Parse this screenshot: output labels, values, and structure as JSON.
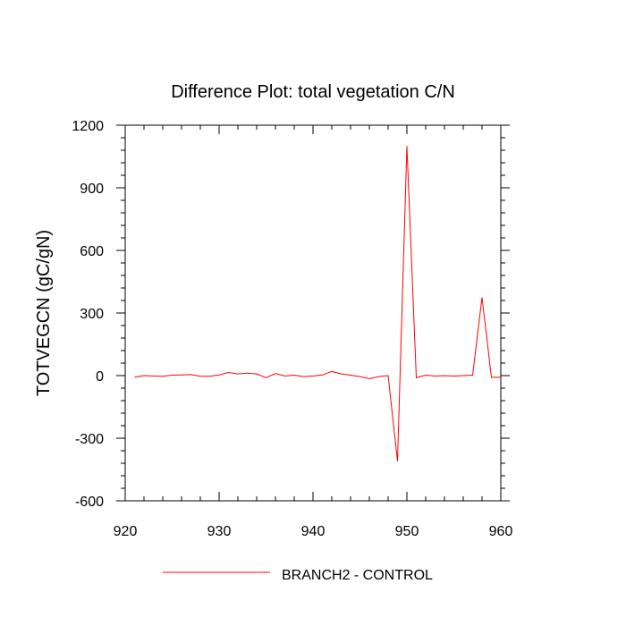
{
  "chart_data": {
    "type": "line",
    "title": "Difference Plot: total vegetation C/N",
    "xlabel": "",
    "ylabel": "TOTVEGCN  (gC/gN)",
    "xlim": [
      920,
      960
    ],
    "ylim": [
      -600,
      1200
    ],
    "x_ticks": [
      920,
      930,
      940,
      950,
      960
    ],
    "x_minor_step": 2,
    "y_ticks": [
      -600,
      -300,
      0,
      300,
      600,
      900,
      1200
    ],
    "y_minor_step": 60,
    "grid": false,
    "legend_position": "bottom-center",
    "series": [
      {
        "name": "BRANCH2 - CONTROL",
        "color": "#ff0000",
        "x": [
          921,
          922,
          923,
          924,
          925,
          926,
          927,
          928,
          929,
          930,
          931,
          932,
          933,
          934,
          935,
          936,
          937,
          938,
          939,
          940,
          941,
          942,
          943,
          944,
          945,
          946,
          947,
          948,
          949,
          950,
          951,
          952,
          953,
          954,
          955,
          956,
          957,
          958,
          959,
          960
        ],
        "y": [
          -8,
          0,
          -2,
          -3,
          2,
          3,
          5,
          -3,
          -3,
          3,
          15,
          8,
          12,
          8,
          -10,
          10,
          -2,
          2,
          -5,
          -2,
          3,
          20,
          8,
          2,
          -5,
          -15,
          -5,
          0,
          -410,
          1100,
          -10,
          2,
          -2,
          0,
          -2,
          0,
          2,
          375,
          -8,
          -8
        ]
      }
    ]
  }
}
